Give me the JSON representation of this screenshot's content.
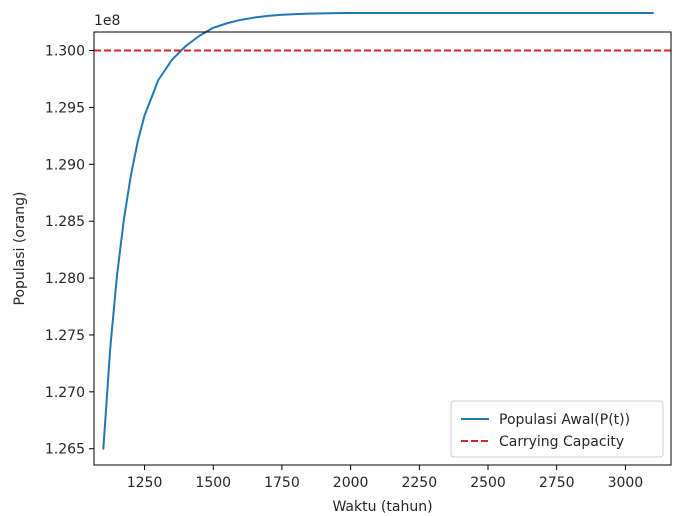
{
  "chart_data": {
    "type": "line",
    "xlabel": "Waktu (tahun)",
    "ylabel": "Populasi (orang)",
    "offset_text": "1e8",
    "xlim": [
      1066,
      3166
    ],
    "ylim": [
      1.26357,
      1.30163
    ],
    "y_scale": 100000000,
    "x_ticks": [
      1250,
      1500,
      1750,
      2000,
      2250,
      2500,
      2750,
      3000
    ],
    "x_tick_labels": [
      "1250",
      "1500",
      "1750",
      "2000",
      "2250",
      "2500",
      "2750",
      "3000"
    ],
    "y_ticks": [
      1.265,
      1.27,
      1.275,
      1.28,
      1.285,
      1.29,
      1.295,
      1.3
    ],
    "y_tick_labels": [
      "1.265",
      "1.270",
      "1.275",
      "1.280",
      "1.285",
      "1.290",
      "1.295",
      "1.300"
    ],
    "grid": false,
    "legend_position": "lower-right",
    "series": [
      {
        "name": "Populasi Awal(P(t))",
        "style": "solid",
        "color": "#1f77b4",
        "x": [
          1100,
          1125,
          1150,
          1175,
          1200,
          1225,
          1250,
          1300,
          1350,
          1400,
          1450,
          1500,
          1550,
          1600,
          1650,
          1700,
          1750,
          1800,
          1850,
          1900,
          1950,
          2000,
          2250,
          2500,
          2750,
          3000,
          3100
        ],
        "values": [
          126500000,
          127380000,
          128030000,
          128520000,
          128900000,
          129200000,
          129430000,
          129740000,
          129920000,
          130040000,
          130130000,
          130200000,
          130240000,
          130270000,
          130290000,
          130305000,
          130315000,
          130320000,
          130324000,
          130327000,
          130329000,
          130330000,
          130330000,
          130330000,
          130330000,
          130330000,
          130330000
        ]
      },
      {
        "name": "Carrying Capacity",
        "style": "dashed",
        "color": "#d62728",
        "y": 130000000
      }
    ]
  }
}
